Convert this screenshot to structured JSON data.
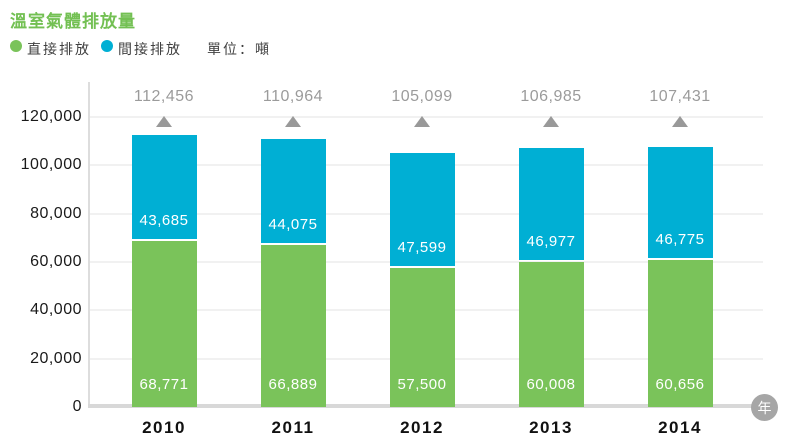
{
  "title": "溫室氣體排放量",
  "title_color": "#73C053",
  "legend": {
    "items": [
      {
        "label": "直接排放",
        "color": "#7AC35A"
      },
      {
        "label": "間接排放",
        "color": "#00AFD4"
      }
    ],
    "unit_label": "單位：噸"
  },
  "x_axis_badge": "年",
  "colors": {
    "direct_green": "#7AC35A",
    "indirect_blue": "#00AFD4",
    "total_label_gray": "#9B9B9B",
    "marker_gray": "#999999",
    "gridline": "#F1F1F1",
    "axis_line": "#D8D8D8",
    "tick_text": "#1A1A1A"
  },
  "chart_data": {
    "type": "bar",
    "stacked": true,
    "title": "溫室氣體排放量",
    "unit": "噸",
    "xlabel": "年",
    "ylabel": "",
    "categories": [
      "2010",
      "2011",
      "2012",
      "2013",
      "2014"
    ],
    "series": [
      {
        "name": "直接排放",
        "color": "#7AC35A",
        "values": [
          68771,
          66889,
          57500,
          60008,
          60656
        ]
      },
      {
        "name": "間接排放",
        "color": "#00AFD4",
        "values": [
          43685,
          44075,
          47599,
          46977,
          46775
        ]
      }
    ],
    "totals": [
      112456,
      110964,
      105099,
      106985,
      107431
    ],
    "ylim": [
      0,
      120000
    ],
    "ytick_step": 20000,
    "ytick_labels": [
      "0",
      "20,000",
      "40,000",
      "60,000",
      "80,000",
      "100,000",
      "120,000"
    ],
    "grid": true,
    "legend_position": "top-left",
    "total_marker": "triangle-up"
  }
}
